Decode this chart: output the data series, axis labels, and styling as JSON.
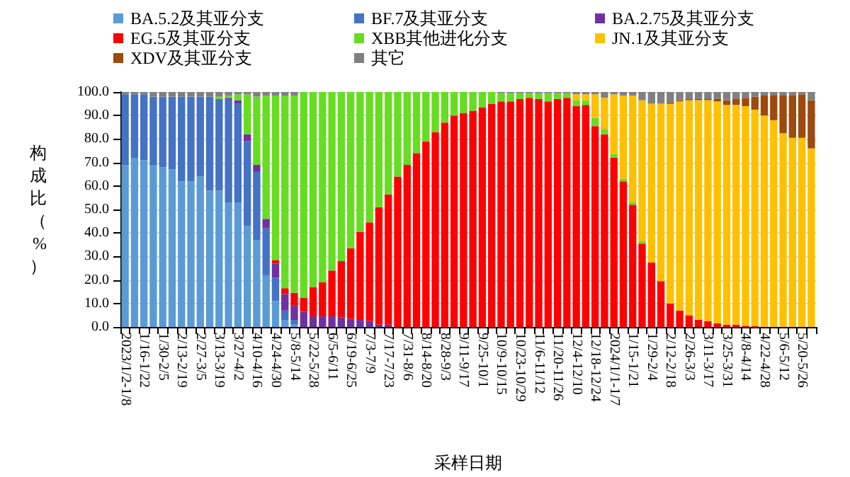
{
  "chart_data": {
    "type": "bar",
    "stacked": true,
    "xlabel": "采样日期",
    "ylabel": "构成比（%）",
    "categories": [
      "2023/1/2-1/8",
      null,
      "1/16-1/22",
      null,
      "1/30-2/5",
      null,
      "2/13-2/19",
      null,
      "2/27-3/5",
      null,
      "3/13-3/19",
      null,
      "3/27-4/2",
      null,
      "4/10-4/16",
      null,
      "4/24-4/30",
      null,
      "5/8-5/14",
      null,
      "5/22-5/28",
      null,
      "6/5-6/11",
      null,
      "6/19-6/25",
      null,
      "7/3-7/9",
      null,
      "7/17-7/23",
      null,
      "7/31-8/6",
      null,
      "8/14-8/20",
      null,
      "8/28-9/3",
      null,
      "9/11-9/17",
      null,
      "9/25-10/1",
      null,
      "10/9-10/15",
      null,
      "10/23-10/29",
      null,
      "11/6-11/12",
      null,
      "11/20-11/26",
      null,
      "12/4-12/10",
      null,
      "12/18-12/24",
      null,
      "2024/1/1-1/7",
      null,
      "1/15-1/21",
      null,
      "1/29-2/4",
      null,
      "2/12-2/18",
      null,
      "2/26-3/3",
      null,
      "3/11-3/17",
      null,
      "3/25-3/31",
      null,
      "4/8-4/14",
      null,
      "4/22-4/28",
      null,
      "5/6-5/12",
      null,
      "5/20-5/26",
      null
    ],
    "series": [
      {
        "name": "BA.5.2及其亚分支",
        "color": "#5b9bd5",
        "values": [
          69,
          72,
          71,
          69,
          68,
          67,
          62,
          62,
          64,
          58,
          58,
          53,
          53,
          43,
          37,
          22,
          11,
          3,
          1,
          0,
          0,
          0,
          0,
          0,
          0,
          0,
          0,
          0,
          0,
          0,
          0,
          0,
          0,
          0,
          0,
          0,
          0,
          0,
          0,
          0,
          0,
          0,
          0,
          0,
          0,
          0,
          0,
          0,
          0,
          0,
          0,
          0,
          0,
          0,
          0,
          0,
          0,
          0,
          0,
          0,
          0,
          0,
          0,
          0,
          0,
          0,
          0,
          0,
          0,
          0,
          0,
          0,
          0,
          0
        ]
      },
      {
        "name": "BF.7及其亚分支",
        "color": "#4472c4",
        "values": [
          30,
          27,
          28,
          29,
          30,
          31,
          36,
          36,
          34,
          40,
          39,
          44,
          42,
          36,
          29,
          20,
          10,
          4,
          2,
          0,
          0,
          0,
          0,
          0,
          0,
          0,
          0,
          0,
          0,
          0,
          0,
          0,
          0,
          0,
          0,
          0,
          0,
          0,
          0,
          0,
          0,
          0,
          0,
          0,
          0,
          0,
          0,
          0,
          0,
          0,
          0,
          0,
          0,
          0,
          0,
          0,
          0,
          0,
          0,
          0,
          0,
          0,
          0,
          0,
          0,
          0,
          0,
          0,
          0,
          0,
          0,
          0,
          0,
          0
        ]
      },
      {
        "name": "BA.2.75及其亚分支",
        "color": "#7030a0",
        "values": [
          0,
          0,
          0,
          0,
          0,
          0,
          0,
          0,
          0,
          0,
          0,
          0.5,
          1.5,
          3,
          3,
          4,
          6,
          7,
          6,
          6.5,
          4.5,
          4.5,
          4.5,
          4,
          3.5,
          3,
          2.5,
          1,
          1,
          0,
          0,
          0,
          0,
          0,
          0,
          0,
          0,
          0,
          0,
          0,
          0,
          0,
          0,
          0,
          0,
          0,
          0,
          0,
          0,
          0,
          0,
          0,
          0,
          0,
          0,
          0,
          0,
          0,
          0,
          0,
          0,
          0,
          0,
          0,
          0,
          0,
          0,
          0,
          0,
          0,
          0,
          0,
          0,
          0
        ]
      },
      {
        "name": "EG.5及其亚分支",
        "color": "#ff0000",
        "values": [
          0,
          0,
          0,
          0,
          0,
          0,
          0,
          0,
          0,
          0,
          0,
          0,
          0,
          0,
          0,
          0,
          1.5,
          2.5,
          5.5,
          6,
          12.5,
          14.5,
          19.5,
          24,
          30,
          37.5,
          42,
          50,
          55.5,
          64,
          69,
          74,
          79,
          83,
          87,
          90,
          91,
          92,
          93.5,
          95,
          96,
          96,
          97,
          97.5,
          97,
          96,
          97,
          97.5,
          94,
          94.5,
          85.5,
          82,
          72,
          62,
          52,
          35.5,
          27.5,
          19.5,
          10,
          7,
          5,
          3,
          2.5,
          1.5,
          1,
          1,
          0.5,
          0.3,
          0,
          0,
          0,
          0,
          0,
          0
        ]
      },
      {
        "name": "XBB其他进化分支",
        "color": "#66dd22",
        "values": [
          0,
          0,
          0,
          0,
          0,
          0,
          0,
          0,
          0,
          0,
          1,
          1,
          2.5,
          17,
          29,
          52.5,
          70,
          82,
          84,
          87.5,
          83,
          81,
          76,
          72,
          66.5,
          59.5,
          55.5,
          49,
          43.5,
          36,
          31,
          26,
          21,
          17,
          13,
          10,
          9,
          8,
          6.5,
          5,
          3.5,
          3.5,
          2.5,
          2,
          2.5,
          3.5,
          2.5,
          2,
          2.5,
          2,
          3.5,
          2,
          1.5,
          1,
          1,
          1,
          0,
          0,
          0,
          0,
          0,
          0,
          0,
          0,
          0,
          0,
          0,
          0,
          0,
          0,
          0,
          0,
          0,
          0
        ]
      },
      {
        "name": "JN.1及其亚分支",
        "color": "#ffc000",
        "values": [
          0,
          0,
          0,
          0,
          0,
          0,
          0,
          0,
          0,
          0,
          0,
          0,
          0,
          0,
          0,
          0,
          0,
          0,
          0,
          0,
          0,
          0,
          0,
          0,
          0,
          0,
          0,
          0,
          0,
          0,
          0,
          0,
          0,
          0,
          0,
          0,
          0,
          0,
          0,
          0,
          0,
          0,
          0,
          0,
          0,
          0,
          0,
          0,
          2.5,
          2.5,
          10,
          13.5,
          25.5,
          35.5,
          45.5,
          60,
          67.5,
          75.5,
          85,
          89,
          91.5,
          93.5,
          94,
          94.5,
          93.5,
          93.5,
          93.5,
          92.2,
          90,
          88,
          82.5,
          80.5,
          80.5,
          76
        ]
      },
      {
        "name": "XDV及其亚分支",
        "color": "#9c4a0e",
        "values": [
          0,
          0,
          0,
          0,
          0,
          0,
          0,
          0,
          0,
          0,
          0,
          0,
          0,
          0,
          0,
          0,
          0,
          0,
          0,
          0,
          0,
          0,
          0,
          0,
          0,
          0,
          0,
          0,
          0,
          0,
          0,
          0,
          0,
          0,
          0,
          0,
          0,
          0,
          0,
          0,
          0,
          0,
          0,
          0,
          0,
          0,
          0,
          0,
          0,
          0,
          0,
          0,
          0,
          0,
          0,
          0,
          0,
          0,
          0.5,
          0.5,
          0.5,
          0.5,
          0.5,
          1,
          2,
          2.5,
          3.5,
          5.5,
          8.5,
          10.5,
          16,
          18,
          18.5,
          20.5
        ]
      },
      {
        "name": "其它",
        "color": "#808080",
        "values": [
          1,
          1,
          1,
          2,
          2,
          2,
          2,
          2,
          2,
          2,
          2,
          1.5,
          1,
          1,
          2,
          1.5,
          1.5,
          1.5,
          1.5,
          0,
          0,
          0,
          0,
          0,
          0,
          0,
          0,
          0,
          0,
          0,
          0,
          0,
          0,
          0,
          0,
          0,
          0,
          0,
          0,
          0,
          0.5,
          0.5,
          0.5,
          0.5,
          0.5,
          0.5,
          0.5,
          0.5,
          1,
          1,
          1,
          2.5,
          1,
          1.5,
          1.5,
          3.5,
          5,
          5,
          4.5,
          3.5,
          3,
          3,
          3,
          3,
          3.5,
          3,
          2.5,
          2,
          1.5,
          1.5,
          1.5,
          1.5,
          1,
          3.5
        ]
      }
    ],
    "ylim": [
      0,
      100
    ],
    "yticks": [
      {
        "value": 0,
        "label": "0.0"
      },
      {
        "value": 10,
        "label": "10.0"
      },
      {
        "value": 20,
        "label": "20.0"
      },
      {
        "value": 30,
        "label": "30.0"
      },
      {
        "value": 40,
        "label": "40.0"
      },
      {
        "value": 50,
        "label": "50.0"
      },
      {
        "value": 60,
        "label": "60.0"
      },
      {
        "value": 70,
        "label": "70.0"
      },
      {
        "value": 80,
        "label": "80.0"
      },
      {
        "value": 90,
        "label": "90.0"
      },
      {
        "value": 100,
        "label": "100.0"
      }
    ],
    "grid": "y",
    "legend": "top"
  }
}
